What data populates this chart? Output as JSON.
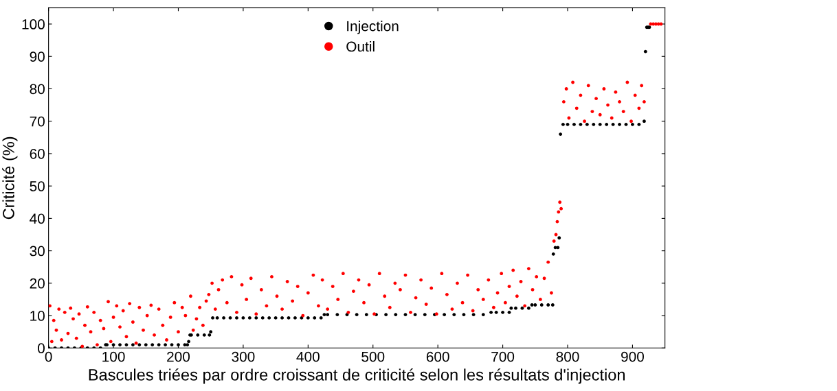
{
  "chart_data": {
    "type": "scatter",
    "xlabel": "Bascules triées par ordre croissant de criticité selon les résultats d'injection",
    "ylabel": "Criticité (%)",
    "xlim": [
      0,
      950
    ],
    "ylim": [
      0,
      105
    ],
    "xticks": [
      0,
      100,
      200,
      300,
      400,
      500,
      600,
      700,
      800,
      900
    ],
    "yticks": [
      0,
      10,
      20,
      30,
      40,
      50,
      60,
      70,
      80,
      90,
      100
    ],
    "grid": false,
    "legend": "top",
    "marker": "circle",
    "series": [
      {
        "name": "Injection",
        "color": "#000000",
        "x": [
          0,
          10,
          20,
          30,
          40,
          50,
          60,
          70,
          80,
          88,
          90,
          100,
          110,
          120,
          130,
          140,
          150,
          160,
          170,
          180,
          190,
          200,
          210,
          214,
          216,
          218,
          220,
          230,
          240,
          248,
          250,
          253,
          260,
          270,
          280,
          290,
          300,
          310,
          320,
          330,
          340,
          350,
          360,
          370,
          380,
          390,
          400,
          410,
          420,
          425,
          430,
          445,
          460,
          475,
          490,
          505,
          520,
          535,
          550,
          565,
          580,
          595,
          610,
          625,
          640,
          655,
          670,
          682,
          690,
          700,
          710,
          713,
          720,
          730,
          740,
          745,
          750,
          760,
          770,
          777,
          778,
          781,
          785,
          787,
          789,
          793,
          800,
          810,
          820,
          830,
          840,
          850,
          860,
          870,
          880,
          890,
          900,
          910,
          918,
          920,
          922,
          924,
          926
        ],
        "values": [
          0,
          0,
          0,
          0,
          0,
          0,
          0,
          0,
          0,
          1,
          1,
          1,
          1,
          1,
          1,
          1,
          1,
          1,
          1,
          1,
          1,
          1,
          1,
          1,
          2,
          4,
          4,
          4,
          4,
          4,
          5,
          9.3,
          9.3,
          9.3,
          9.3,
          9.3,
          9.3,
          9.3,
          9.3,
          9.3,
          9.3,
          9.3,
          9.3,
          9.3,
          9.3,
          9.3,
          9.3,
          9.3,
          9.3,
          10.3,
          10.3,
          10.3,
          10.3,
          10.3,
          10.3,
          10.3,
          10.3,
          10.3,
          10.3,
          10.3,
          10.3,
          10.3,
          10.3,
          10.3,
          10.3,
          10.3,
          10.3,
          11,
          11,
          11,
          11,
          12.3,
          12.3,
          12.3,
          12.3,
          13.3,
          13.3,
          13.3,
          13.3,
          13.3,
          29,
          31,
          31,
          34,
          66,
          69,
          69,
          69,
          69,
          69,
          69,
          69,
          69,
          69,
          69,
          69,
          69,
          69,
          70,
          91.5,
          99,
          99,
          99
        ]
      },
      {
        "name": "Outil",
        "color": "#ff0000",
        "x": [
          2,
          5,
          8,
          12,
          16,
          20,
          25,
          30,
          34,
          38,
          43,
          47,
          52,
          56,
          60,
          65,
          70,
          75,
          80,
          85,
          92,
          96,
          100,
          105,
          110,
          115,
          120,
          125,
          130,
          135,
          140,
          146,
          152,
          158,
          163,
          170,
          176,
          182,
          188,
          194,
          200,
          206,
          211,
          219,
          223,
          228,
          233,
          238,
          243,
          247,
          252,
          257,
          262,
          268,
          275,
          282,
          290,
          298,
          305,
          312,
          320,
          328,
          336,
          344,
          352,
          360,
          368,
          376,
          384,
          392,
          400,
          408,
          416,
          422,
          430,
          438,
          446,
          454,
          462,
          470,
          478,
          486,
          494,
          502,
          510,
          518,
          526,
          534,
          542,
          550,
          558,
          566,
          574,
          582,
          590,
          598,
          606,
          614,
          622,
          630,
          638,
          646,
          654,
          662,
          670,
          678,
          686,
          692,
          698,
          704,
          710,
          716,
          722,
          728,
          734,
          740,
          746,
          752,
          758,
          764,
          770,
          775,
          779,
          782,
          784,
          786,
          788,
          790,
          794,
          798,
          802,
          808,
          814,
          820,
          826,
          832,
          838,
          844,
          850,
          856,
          862,
          868,
          874,
          880,
          886,
          892,
          898,
          904,
          910,
          914,
          918,
          928,
          932,
          936,
          940,
          944
        ],
        "values": [
          13,
          2,
          8.5,
          5.5,
          12,
          2.5,
          11,
          4.5,
          12.3,
          9,
          3,
          10.5,
          0.5,
          7,
          12.7,
          5,
          11,
          1,
          8.5,
          6,
          14.3,
          2,
          9.5,
          13,
          6.5,
          11.5,
          3.5,
          13.7,
          8,
          1.5,
          12.5,
          5.5,
          10,
          13.2,
          4,
          12,
          7,
          2.5,
          9.5,
          14,
          5,
          12.5,
          10,
          16,
          5.5,
          9,
          12.5,
          7,
          14.5,
          16.5,
          20,
          12,
          18,
          21,
          14,
          22,
          11,
          19.5,
          15,
          21.5,
          10.5,
          18,
          13,
          22,
          16,
          12,
          20.5,
          14.5,
          19,
          10,
          17,
          22.5,
          13,
          21,
          12,
          19,
          15,
          23,
          11,
          17.5,
          21,
          14,
          19.5,
          10.5,
          23,
          16,
          12.5,
          20,
          18,
          22.5,
          11,
          15.5,
          21,
          13.5,
          18.5,
          10.5,
          23,
          16.5,
          12,
          20,
          14,
          22.5,
          11.5,
          18,
          15,
          21,
          12.5,
          17,
          23,
          14,
          19,
          24,
          16,
          20.5,
          13,
          24.5,
          18,
          22,
          15,
          21.5,
          26.5,
          17,
          33,
          35,
          39,
          42,
          45,
          43,
          76,
          80,
          71,
          82,
          74,
          78,
          70,
          81,
          73,
          77,
          72,
          80,
          75,
          71,
          79,
          76,
          73,
          82,
          70,
          78,
          74,
          81,
          76,
          100,
          100,
          100,
          100,
          100
        ]
      }
    ]
  }
}
